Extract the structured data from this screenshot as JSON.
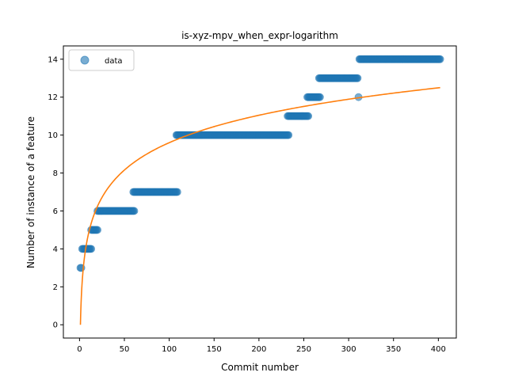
{
  "chart_data": {
    "type": "scatter",
    "title": "is-xyz-mpv_when_expr-logarithm",
    "xlabel": "Commit number",
    "ylabel": "Number of instance of a feature",
    "xlim": [
      -18,
      420
    ],
    "ylim": [
      -0.7,
      14.7
    ],
    "xticks": [
      0,
      50,
      100,
      150,
      200,
      250,
      300,
      350,
      400
    ],
    "yticks": [
      0,
      2,
      4,
      6,
      8,
      10,
      12,
      14
    ],
    "grid": false,
    "legend": {
      "position": "top-left",
      "entries": [
        "data"
      ]
    },
    "colors": {
      "data": "#1f77b4",
      "fit": "#ff7f0e"
    },
    "series": [
      {
        "name": "data",
        "kind": "scatter",
        "segments": [
          {
            "y": 3,
            "x_start": 1,
            "x_end": 2
          },
          {
            "y": 4,
            "x_start": 3,
            "x_end": 13
          },
          {
            "y": 5,
            "x_start": 13,
            "x_end": 20
          },
          {
            "y": 6,
            "x_start": 20,
            "x_end": 61
          },
          {
            "y": 7,
            "x_start": 60,
            "x_end": 109
          },
          {
            "y": 10,
            "x_start": 108,
            "x_end": 233
          },
          {
            "y": 11,
            "x_start": 232,
            "x_end": 255
          },
          {
            "y": 12,
            "x_start": 254,
            "x_end": 268
          },
          {
            "y": 13,
            "x_start": 267,
            "x_end": 310
          },
          {
            "y": 12,
            "x_start": 311,
            "x_end": 311
          },
          {
            "y": 14,
            "x_start": 312,
            "x_end": 402
          }
        ]
      },
      {
        "kind": "line",
        "function": "logarithmic",
        "equation": "y = 2.083 * ln(x)",
        "x_range": [
          1,
          402
        ],
        "points": [
          [
            1,
            0.0
          ],
          [
            5,
            3.35
          ],
          [
            10,
            4.8
          ],
          [
            25,
            6.7
          ],
          [
            50,
            8.15
          ],
          [
            100,
            9.6
          ],
          [
            150,
            10.44
          ],
          [
            200,
            11.04
          ],
          [
            250,
            11.5
          ],
          [
            300,
            11.88
          ],
          [
            350,
            12.2
          ],
          [
            402,
            12.5
          ]
        ]
      }
    ]
  }
}
